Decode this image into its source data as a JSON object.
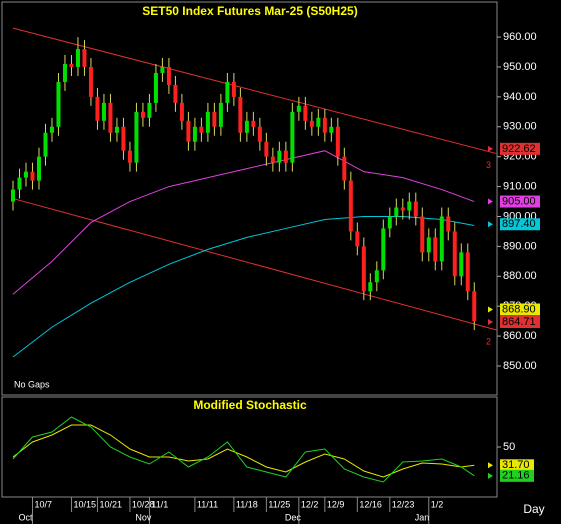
{
  "chart_data": [
    {
      "type": "candlestick",
      "title": "SET50 Index Futures Mar-25 (S50H25)",
      "note": "No Gaps",
      "up_color": "#00e000",
      "down_color": "#ff2020",
      "wick_color": "#d8d860",
      "open": [
        905,
        909,
        913,
        915,
        912,
        920,
        928,
        930,
        945,
        951,
        950,
        956,
        950,
        940,
        932,
        938,
        928,
        930,
        922,
        918,
        935,
        933,
        938,
        948,
        950,
        944,
        938,
        932,
        925,
        930,
        928,
        935,
        930,
        938,
        945,
        940,
        928,
        932,
        930,
        925,
        920,
        918,
        922,
        918,
        935,
        937,
        932,
        930,
        933,
        928,
        930,
        920,
        912,
        895,
        890,
        875,
        878,
        882,
        896,
        900,
        903,
        902,
        905,
        900,
        888,
        893,
        885,
        900,
        895,
        880,
        888,
        875
      ],
      "high": [
        912,
        916,
        918,
        918,
        923,
        931,
        933,
        948,
        954,
        954,
        960,
        959,
        953,
        943,
        941,
        941,
        933,
        933,
        925,
        938,
        938,
        941,
        951,
        953,
        953,
        947,
        941,
        935,
        933,
        933,
        938,
        938,
        941,
        948,
        948,
        943,
        935,
        935,
        933,
        928,
        923,
        925,
        925,
        938,
        940,
        940,
        935,
        936,
        936,
        933,
        933,
        923,
        915,
        898,
        893,
        881,
        885,
        899,
        903,
        906,
        906,
        908,
        908,
        903,
        896,
        896,
        903,
        903,
        898,
        891,
        891,
        878
      ],
      "low": [
        902,
        906,
        910,
        909,
        909,
        917,
        925,
        927,
        942,
        947,
        947,
        947,
        937,
        929,
        929,
        925,
        925,
        919,
        915,
        915,
        930,
        930,
        935,
        945,
        941,
        935,
        929,
        922,
        922,
        925,
        925,
        927,
        927,
        935,
        937,
        925,
        925,
        927,
        922,
        917,
        915,
        915,
        915,
        915,
        932,
        929,
        927,
        927,
        925,
        925,
        917,
        909,
        892,
        887,
        872,
        872,
        875,
        879,
        893,
        897,
        899,
        899,
        897,
        885,
        885,
        882,
        882,
        892,
        877,
        877,
        872,
        862
      ],
      "close": [
        909,
        913,
        915,
        912,
        920,
        928,
        930,
        945,
        951,
        950,
        956,
        950,
        940,
        932,
        938,
        928,
        930,
        922,
        918,
        935,
        933,
        938,
        948,
        950,
        944,
        938,
        932,
        925,
        930,
        928,
        935,
        930,
        938,
        945,
        940,
        928,
        932,
        930,
        925,
        920,
        918,
        922,
        918,
        935,
        937,
        932,
        930,
        933,
        928,
        930,
        920,
        912,
        895,
        890,
        875,
        878,
        882,
        896,
        900,
        903,
        902,
        905,
        900,
        888,
        893,
        885,
        900,
        895,
        880,
        888,
        875,
        865
      ],
      "xlim": [
        -2,
        74.5
      ],
      "xticks": [
        {
          "value": 3,
          "label": "10/7"
        },
        {
          "value": 9,
          "label": "10/15"
        },
        {
          "value": 13,
          "label": "10/21"
        },
        {
          "value": 18,
          "label": "10/28"
        },
        {
          "value": 21,
          "label": "11/1"
        },
        {
          "value": 28,
          "label": "11/11"
        },
        {
          "value": 34,
          "label": "11/18"
        },
        {
          "value": 39,
          "label": "11/25"
        },
        {
          "value": 44,
          "label": "12/2"
        },
        {
          "value": 48,
          "label": "12/9"
        },
        {
          "value": 53,
          "label": "12/16"
        },
        {
          "value": 58,
          "label": "12/23"
        },
        {
          "value": 64,
          "label": "1/2"
        }
      ],
      "month_ticks": [
        {
          "value": 3,
          "label": "Oct"
        },
        {
          "value": 21,
          "label": "Nov"
        },
        {
          "value": 44,
          "label": "Dec"
        },
        {
          "value": 64,
          "label": "Jan"
        }
      ],
      "x_unit_label": "Day",
      "ylim": [
        840.3,
        972.4
      ],
      "yticks": [
        {
          "value": 850,
          "label": "850.00"
        },
        {
          "value": 860,
          "label": "860.00"
        },
        {
          "value": 870,
          "label": "870.00"
        },
        {
          "value": 880,
          "label": "880.00"
        },
        {
          "value": 890,
          "label": "890.00"
        },
        {
          "value": 900,
          "label": "900.00"
        },
        {
          "value": 910,
          "label": "910.00"
        },
        {
          "value": 920,
          "label": "920.00"
        },
        {
          "value": 930,
          "label": "930.00"
        },
        {
          "value": 940,
          "label": "940.00"
        },
        {
          "value": 950,
          "label": "950.00"
        },
        {
          "value": 960,
          "label": "960.00"
        }
      ],
      "series": [
        {
          "color": "#e040e0",
          "x": [
            0,
            6,
            12,
            18,
            24,
            30,
            36,
            42,
            48,
            54,
            60,
            66,
            71
          ],
          "values": [
            874,
            885,
            898,
            905,
            910,
            913,
            916,
            919,
            922,
            915,
            913,
            909,
            905
          ]
        },
        {
          "color": "#00c8d8",
          "x": [
            0,
            6,
            12,
            18,
            24,
            30,
            36,
            42,
            48,
            54,
            60,
            66,
            71
          ],
          "values": [
            853,
            863,
            871,
            878,
            884,
            889,
            893,
            896,
            899,
            900,
            900,
            899,
            897
          ]
        }
      ],
      "trendlines": [
        {
          "name": "3",
          "color": "#e03030",
          "x": [
            0,
            74.5
          ],
          "values": [
            963,
            921
          ]
        },
        {
          "name": "2",
          "color": "#e03030",
          "x": [
            0,
            74.5
          ],
          "values": [
            906,
            862
          ]
        }
      ],
      "price_labels": [
        {
          "value": 922.62,
          "label": "922.62",
          "color": "#e03030"
        },
        {
          "value": 905.0,
          "label": "905.00",
          "color": "#e040e0"
        },
        {
          "value": 897.4,
          "label": "897.40",
          "color": "#00c8d8"
        },
        {
          "value": 868.9,
          "label": "868.90",
          "color": "#e8e800"
        },
        {
          "value": 864.71,
          "label": "864.71",
          "color": "#e03030"
        }
      ]
    },
    {
      "type": "line",
      "title": "Modified Stochastic",
      "ylim": [
        0,
        100
      ],
      "yticks": [
        50
      ],
      "series": [
        {
          "color": "#e8e800",
          "x": [
            0,
            3,
            6,
            9,
            12,
            15,
            18,
            21,
            24,
            27,
            30,
            33,
            36,
            39,
            42,
            45,
            48,
            51,
            54,
            57,
            60,
            63,
            66,
            69,
            71
          ],
          "values": [
            40,
            55,
            62,
            72,
            72,
            62,
            48,
            40,
            40,
            36,
            38,
            48,
            40,
            30,
            25,
            35,
            43,
            38,
            26,
            20,
            28,
            34,
            33,
            30,
            31.7
          ],
          "last_label": "31.70"
        },
        {
          "color": "#20d020",
          "x": [
            0,
            3,
            6,
            9,
            12,
            15,
            18,
            21,
            24,
            27,
            30,
            33,
            36,
            39,
            42,
            45,
            48,
            51,
            54,
            57,
            60,
            63,
            66,
            69,
            71
          ],
          "values": [
            38,
            60,
            65,
            80,
            70,
            50,
            40,
            33,
            45,
            30,
            40,
            55,
            30,
            25,
            20,
            45,
            48,
            28,
            20,
            15,
            35,
            36,
            38,
            30,
            21.16
          ],
          "last_label": "21.16"
        }
      ]
    }
  ]
}
